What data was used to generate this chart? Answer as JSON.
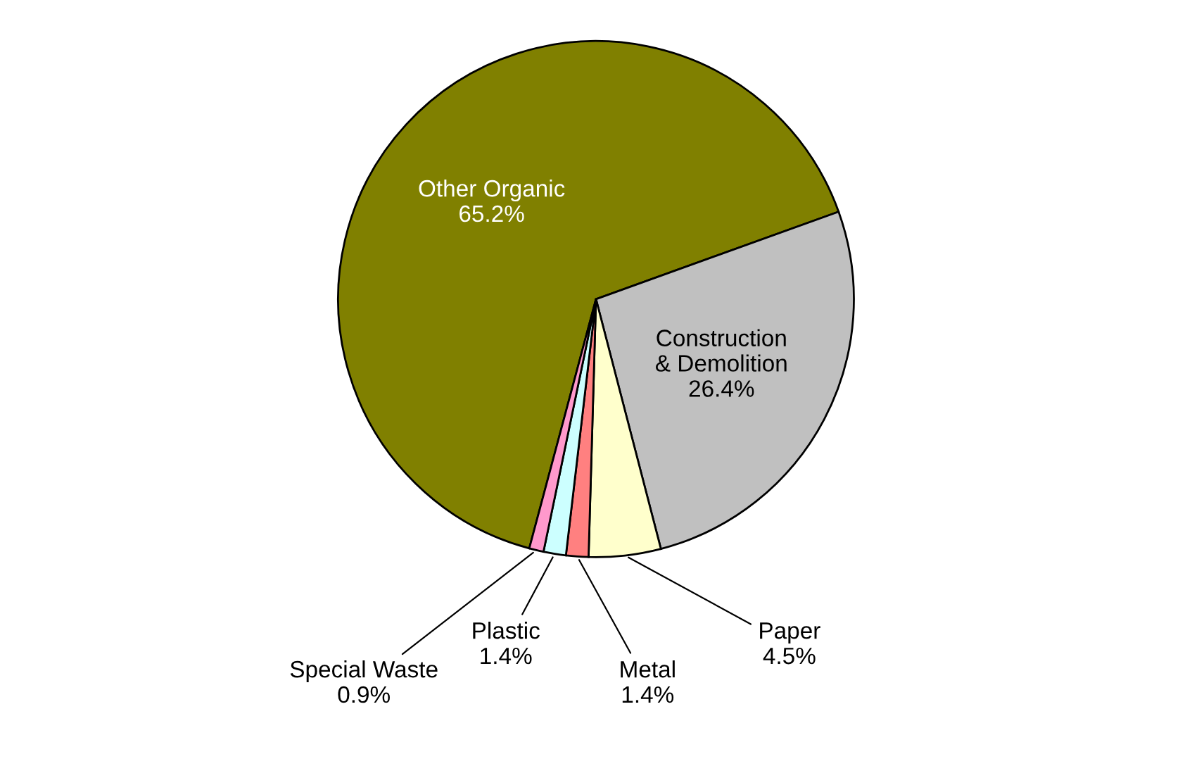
{
  "chart_data": {
    "type": "pie",
    "categories": [
      "Other Organic",
      "Construction\n& Demolition",
      "Paper",
      "Metal",
      "Plastic",
      "Special Waste"
    ],
    "values": [
      65.2,
      26.4,
      4.5,
      1.4,
      1.4,
      0.9
    ],
    "colors": [
      "#808000",
      "#c0c0c0",
      "#ffffcc",
      "#ff8080",
      "#ccffff",
      "#ff99cc"
    ],
    "value_labels": [
      "65.2%",
      "26.4%",
      "4.5%",
      "1.4%",
      "1.4%",
      "0.9%"
    ],
    "legend": false
  }
}
